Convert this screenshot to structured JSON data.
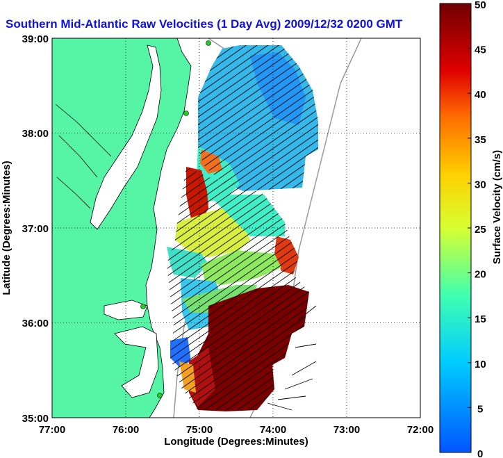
{
  "title": "Southern Mid-Atlantic Raw Velocities (1 Day Avg) 2009/12/32 0200 GMT",
  "x_axis": {
    "label": "Longitude (Degrees:Minutes)",
    "ticks": [
      "77:00",
      "76:00",
      "75:00",
      "74:00",
      "73:00",
      "72:00"
    ]
  },
  "y_axis": {
    "label": "Latitude (Degrees:Minutes)",
    "ticks": [
      "39:00",
      "38:00",
      "37:00",
      "36:00",
      "35:00"
    ]
  },
  "colorbar": {
    "label": "Surface Velocity (cm/s)",
    "ticks": [
      "50",
      "45",
      "40",
      "35",
      "30",
      "25",
      "20",
      "15",
      "10",
      "5",
      "0"
    ],
    "min": 0,
    "max": 50
  },
  "colors": {
    "land": "#55f5a5",
    "title": "#1010e0",
    "slow": "#1060ff",
    "fast": "#7a0000"
  }
}
